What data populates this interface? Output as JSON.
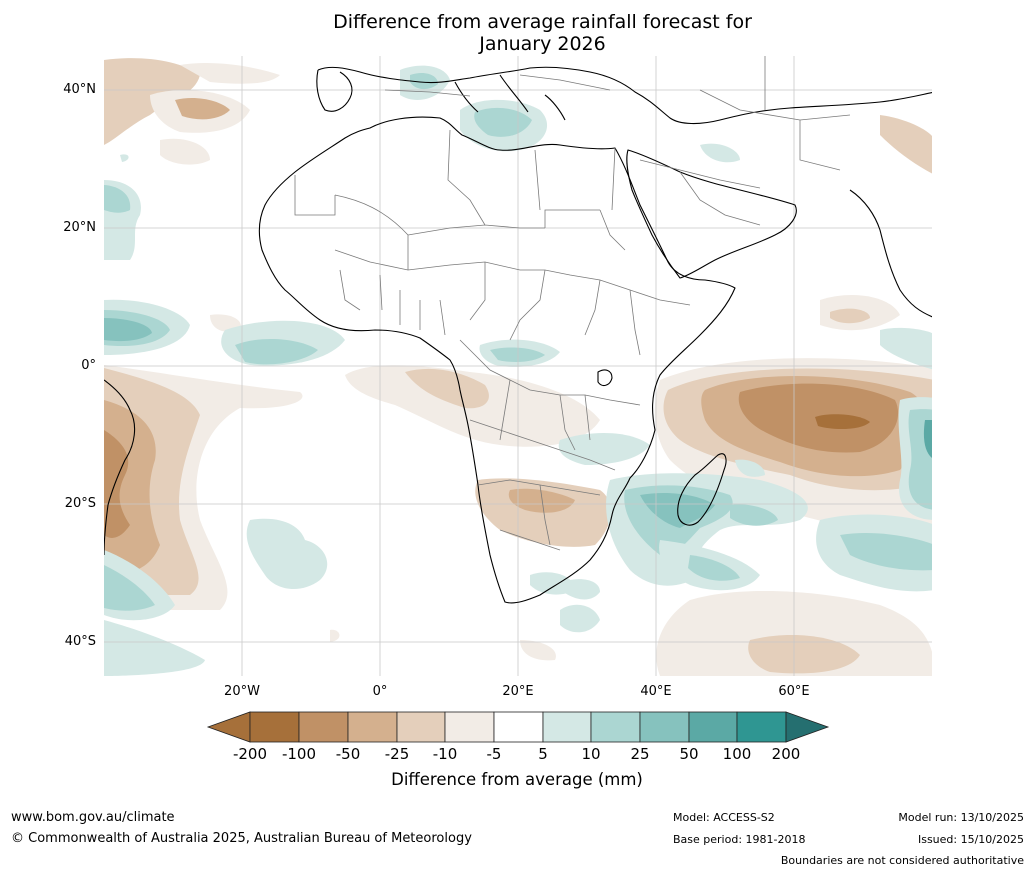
{
  "title": {
    "line1": "Difference from average rainfall forecast for",
    "line2": "January 2026"
  },
  "map": {
    "lat_labels": [
      "40°N",
      "20°N",
      "0°",
      "20°S",
      "40°S"
    ],
    "lon_labels": [
      "20°W",
      "0°",
      "20°E",
      "40°E",
      "60°E"
    ],
    "region": "Africa, Middle East and adjoining oceans",
    "lat_range": [
      -45,
      45
    ],
    "lon_range": [
      -40,
      80
    ]
  },
  "legend": {
    "ticks": [
      "-200",
      "-100",
      "-50",
      "-25",
      "-10",
      "-5",
      "5",
      "10",
      "25",
      "50",
      "100",
      "200"
    ],
    "colors": [
      "#a6703a",
      "#c09166",
      "#d4b08e",
      "#e4cfbb",
      "#f2ece6",
      "#ffffff",
      "#d4e8e5",
      "#abd6d2",
      "#86c2be",
      "#5ba9a5",
      "#2f9692",
      "#256f70"
    ],
    "label": "Difference from average (mm)"
  },
  "footer": {
    "website": "www.bom.gov.au/climate",
    "copyright": "© Commonwealth of Australia 2025, Australian Bureau of Meteorology",
    "model": "Model: ACCESS-S2",
    "base_period": "Base period: 1981-2018",
    "model_run": "Model run: 13/10/2025",
    "issued": "Issued: 15/10/2025",
    "disclaimer": "Boundaries are not considered authoritative"
  }
}
